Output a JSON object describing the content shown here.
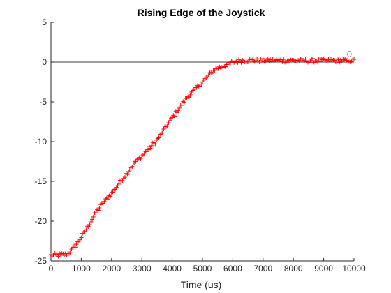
{
  "chart_data": {
    "type": "scatter",
    "title": "Rising Edge of the Joystick",
    "xlabel": "Time (us)",
    "ylabel": "",
    "xlim": [
      0,
      10000
    ],
    "ylim": [
      -25,
      5
    ],
    "xticks": [
      0,
      1000,
      2000,
      3000,
      4000,
      5000,
      6000,
      7000,
      8000,
      9000,
      10000
    ],
    "yticks": [
      5,
      0,
      -5,
      -10,
      -15,
      -20,
      -25
    ],
    "grid": false,
    "marker": "+",
    "reference_line": {
      "y": 0
    },
    "annotation": {
      "text": "0",
      "x": 9850,
      "y": 0.6
    },
    "series": [
      {
        "color": "#ff0000",
        "x_start": 0,
        "x_end": 10000,
        "x_step": 40,
        "profile": [
          [
            0,
            -24.3
          ],
          [
            500,
            -24.2
          ],
          [
            650,
            -23.8
          ],
          [
            900,
            -22.6
          ],
          [
            1200,
            -20.8
          ],
          [
            1500,
            -18.8
          ],
          [
            1700,
            -17.8
          ],
          [
            2000,
            -16.5
          ],
          [
            2500,
            -14.0
          ],
          [
            2700,
            -12.9
          ],
          [
            3000,
            -11.8
          ],
          [
            3500,
            -9.8
          ],
          [
            4000,
            -7.0
          ],
          [
            4500,
            -4.4
          ],
          [
            5000,
            -2.5
          ],
          [
            5400,
            -0.9
          ],
          [
            5700,
            -0.5
          ],
          [
            6000,
            0.0
          ],
          [
            6300,
            0.2
          ],
          [
            10000,
            0.2
          ]
        ],
        "noise_amplitude": 0.25
      }
    ]
  }
}
